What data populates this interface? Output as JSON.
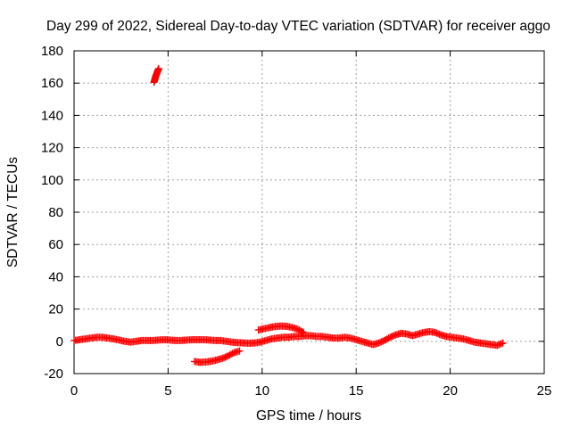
{
  "chart_data": {
    "type": "scatter",
    "title": "Day 299 of 2022, Sidereal Day-to-day VTEC variation (SDTVAR) for receiver aggo",
    "xlabel": "GPS time / hours",
    "ylabel": "SDTVAR / TECUs",
    "xlim": [
      0,
      25
    ],
    "ylim": [
      -20,
      180
    ],
    "xticks": [
      0,
      5,
      10,
      15,
      20,
      25
    ],
    "yticks": [
      -20,
      0,
      20,
      40,
      60,
      80,
      100,
      120,
      140,
      160,
      180
    ],
    "grid": true,
    "marker": "plus",
    "color": "#ff0000",
    "series": [
      {
        "name": "main-track",
        "x": [
          0.0,
          0.3,
          0.6,
          0.9,
          1.2,
          1.5,
          1.8,
          2.1,
          2.4,
          2.7,
          3.0,
          3.3,
          3.6,
          3.9,
          4.2,
          4.5,
          4.8,
          5.1,
          5.4,
          5.7,
          6.0,
          6.3,
          6.6,
          6.9,
          7.2,
          7.5,
          7.8,
          8.1,
          8.4,
          8.7,
          9.0,
          9.3,
          9.6,
          9.9,
          10.2,
          10.5,
          10.8,
          11.1,
          11.4,
          11.7,
          12.0,
          12.3,
          12.6,
          12.9,
          13.2,
          13.5,
          13.8,
          14.1,
          14.4,
          14.7,
          15.0,
          15.3,
          15.6,
          15.9,
          16.2,
          16.5,
          16.8,
          17.1,
          17.4,
          17.7,
          18.0,
          18.3,
          18.6,
          18.9,
          19.2,
          19.5,
          19.8,
          20.1,
          20.4,
          20.7,
          21.0,
          21.3,
          21.6,
          21.9,
          22.2,
          22.5,
          22.8
        ],
        "y": [
          0.5,
          1.0,
          1.5,
          2.0,
          2.5,
          2.5,
          2.0,
          1.5,
          0.8,
          0.0,
          -0.5,
          0.0,
          0.5,
          0.5,
          0.5,
          0.8,
          1.0,
          0.8,
          0.5,
          0.5,
          0.8,
          1.0,
          1.0,
          1.0,
          0.8,
          0.5,
          0.5,
          0.0,
          -0.5,
          -0.8,
          -1.0,
          -1.2,
          -1.0,
          -0.5,
          0.5,
          1.5,
          2.0,
          2.5,
          2.5,
          3.0,
          3.0,
          3.5,
          3.5,
          3.0,
          3.0,
          2.5,
          2.0,
          2.0,
          2.5,
          2.0,
          1.0,
          0.0,
          -1.0,
          -2.0,
          -1.0,
          0.5,
          2.5,
          4.0,
          5.0,
          4.5,
          3.5,
          4.5,
          5.5,
          6.0,
          5.5,
          4.0,
          3.0,
          2.5,
          2.0,
          1.5,
          0.5,
          -0.5,
          -1.0,
          -1.5,
          -2.0,
          -2.5,
          -1.0
        ]
      },
      {
        "name": "upper-arc",
        "x": [
          9.8,
          10.1,
          10.4,
          10.7,
          11.0,
          11.3,
          11.6,
          11.9,
          12.2
        ],
        "y": [
          7.0,
          7.8,
          8.6,
          9.2,
          9.5,
          9.3,
          8.6,
          7.5,
          5.5
        ]
      },
      {
        "name": "lower-arc",
        "x": [
          6.4,
          6.7,
          7.0,
          7.3,
          7.6,
          7.9,
          8.2,
          8.5,
          8.8
        ],
        "y": [
          -12.5,
          -13.0,
          -12.8,
          -12.3,
          -11.5,
          -10.5,
          -9.0,
          -7.0,
          -6.0
        ]
      },
      {
        "name": "outlier-spike",
        "x": [
          4.25,
          4.3,
          4.35,
          4.4,
          4.45,
          4.5
        ],
        "y": [
          160.5,
          162.5,
          164.5,
          166.0,
          167.5,
          169.0
        ]
      }
    ]
  }
}
